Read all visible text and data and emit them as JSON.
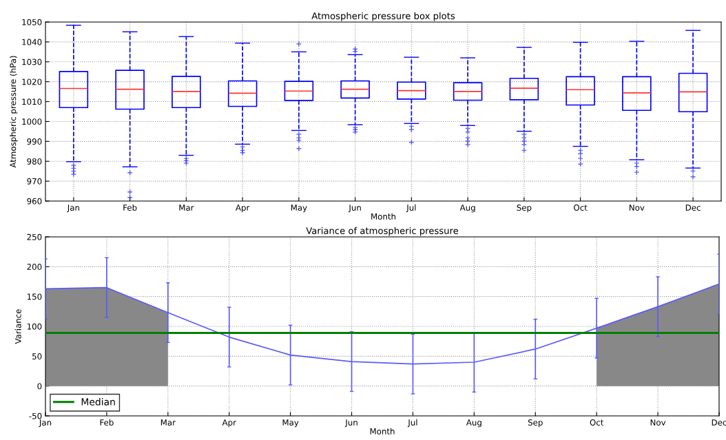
{
  "chart_data": [
    {
      "type": "box",
      "title": "Atmospheric pressure box plots",
      "xlabel": "Month",
      "ylabel": "Atmospheric pressure (hPa)",
      "categories": [
        "Jan",
        "Feb",
        "Mar",
        "Apr",
        "May",
        "Jun",
        "Jul",
        "Aug",
        "Sep",
        "Oct",
        "Nov",
        "Dec"
      ],
      "ylim": [
        960,
        1050
      ],
      "yticks": [
        960,
        970,
        980,
        990,
        1000,
        1010,
        1020,
        1030,
        1040,
        1050
      ],
      "grid": true,
      "marker": "cross",
      "series": [
        {
          "color": "#0000ff",
          "boxes": [
            {
              "low": 979.8,
              "q1": 1007,
              "median": 1016.6,
              "q3": 1025.1,
              "high": 1048.4,
              "outliers": [
                978,
                976.5,
                975,
                973.5
              ]
            },
            {
              "low": 977.2,
              "q1": 1006.2,
              "median": 1016.2,
              "q3": 1025.7,
              "high": 1045.1,
              "outliers": [
                974.3,
                964.6,
                961.8
              ]
            },
            {
              "low": 983,
              "q1": 1007,
              "median": 1015.1,
              "q3": 1022.7,
              "high": 1042.7,
              "outliers": [
                981.4,
                980.3,
                979.1
              ]
            },
            {
              "low": 988.6,
              "q1": 1007.6,
              "median": 1014.2,
              "q3": 1020.4,
              "high": 1039.4,
              "outliers": [
                987.2,
                985.5,
                984.3
              ]
            },
            {
              "low": 995.5,
              "q1": 1010.6,
              "median": 1015.3,
              "q3": 1020.2,
              "high": 1035,
              "outliers": [
                1039,
                993.6,
                991.8,
                990.5,
                986.4
              ]
            },
            {
              "low": 998.4,
              "q1": 1011.8,
              "median": 1016.2,
              "q3": 1020.4,
              "high": 1033.6,
              "outliers": [
                1036.4,
                1035.2,
                997,
                995.9,
                994.7
              ]
            },
            {
              "low": 999,
              "q1": 1011.3,
              "median": 1015.5,
              "q3": 1019.8,
              "high": 1032.3,
              "outliers": [
                997.6,
                995.9,
                989.5
              ]
            },
            {
              "low": 998,
              "q1": 1010.7,
              "median": 1015.1,
              "q3": 1019.5,
              "high": 1032,
              "outliers": [
                996.5,
                994.7,
                991.8,
                990.1,
                988.4
              ]
            },
            {
              "low": 995.1,
              "q1": 1010.9,
              "median": 1016.7,
              "q3": 1021.7,
              "high": 1037.3,
              "outliers": [
                993.6,
                991.8,
                990.1,
                988.4,
                985.5
              ]
            },
            {
              "low": 987.5,
              "q1": 1008.3,
              "median": 1016,
              "q3": 1022.5,
              "high": 1039.8,
              "outliers": [
                985.5,
                983.8,
                981.4,
                978.6
              ]
            },
            {
              "low": 980.8,
              "q1": 1005.6,
              "median": 1014.4,
              "q3": 1022.5,
              "high": 1040.3,
              "outliers": [
                979.1,
                977.4,
                974.5
              ]
            },
            {
              "low": 976.6,
              "q1": 1004.9,
              "median": 1014.9,
              "q3": 1024.2,
              "high": 1045.8,
              "outliers": [
                975.1,
                972.2
              ]
            }
          ]
        }
      ]
    },
    {
      "type": "line",
      "title": "Variance of atmospheric pressure",
      "xlabel": "Month",
      "ylabel": "Variance",
      "categories": [
        "Jan",
        "Feb",
        "Mar",
        "Apr",
        "May",
        "Jun",
        "Jul",
        "Aug",
        "Sep",
        "Oct",
        "Nov",
        "Dec"
      ],
      "ylim": [
        -50,
        250
      ],
      "yticks": [
        -50,
        0,
        50,
        100,
        150,
        200,
        250
      ],
      "grid": true,
      "legend": "bottom left",
      "series": [
        {
          "type": "area",
          "color": "#888888",
          "values": [
            163,
            165,
            123,
            null,
            null,
            null,
            null,
            null,
            null,
            97,
            133,
            171
          ]
        },
        {
          "type": "line",
          "color": "#5a5aff",
          "values": [
            163,
            165,
            123,
            82,
            52,
            41,
            37,
            40,
            62,
            97,
            133,
            171
          ],
          "errors": [
            50,
            50,
            50,
            50,
            50,
            50,
            50,
            50,
            50,
            50,
            50,
            50
          ]
        }
      ],
      "ref_lines": [
        {
          "axis": "y",
          "value": 89,
          "label": "Median",
          "color": "#008000"
        }
      ]
    }
  ]
}
